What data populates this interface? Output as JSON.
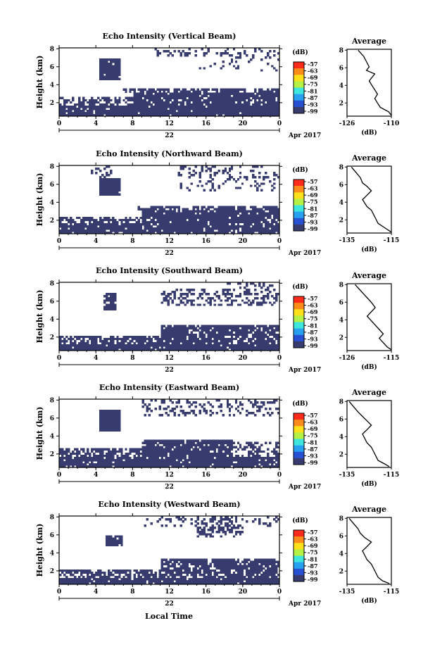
{
  "figure": {
    "xlabel": "Local Time",
    "date_label": "Apr 2017",
    "day_label": "22",
    "panel_ylabel": "Height (km)",
    "side_title": "Average",
    "side_xlabel": "(dB)",
    "cb_unit": "(dB)",
    "cb_ticks": [
      "-57",
      "-63",
      "-69",
      "-75",
      "-81",
      "-87",
      "-93",
      "-99"
    ],
    "x_ticks": [
      "0",
      "4",
      "8",
      "12",
      "16",
      "20",
      "0"
    ],
    "y_ticks": [
      "8",
      "6",
      "4",
      "2"
    ],
    "colors": {
      "echo": "#373b6e",
      "background": "#ffffff",
      "colorbar": [
        "#ff2a1a",
        "#ff8c1a",
        "#ffe01a",
        "#b4f046",
        "#3ce6dc",
        "#28a0f0",
        "#2850d2",
        "#373b6e"
      ]
    }
  },
  "chart_data": [
    {
      "type": "heatmap",
      "title": "Echo Intensity (Vertical Beam)",
      "xlabel": "Local Time",
      "ylabel": "Height (km)",
      "xlim": [
        0,
        24
      ],
      "ylim": [
        0.5,
        8.1
      ],
      "colorbar_range": [
        -99,
        -57
      ],
      "echo_regions": [
        {
          "t0": 0,
          "t1": 24,
          "h0": 0.5,
          "h1": 1.6,
          "density": 0.96
        },
        {
          "t0": 0,
          "t1": 8,
          "h0": 1.6,
          "h1": 2.6,
          "density": 0.55
        },
        {
          "t0": 8,
          "t1": 24,
          "h0": 1.6,
          "h1": 3.0,
          "density": 0.9
        },
        {
          "t0": 7,
          "t1": 24,
          "h0": 3.0,
          "h1": 3.5,
          "density": 0.75
        },
        {
          "t0": 4.3,
          "t1": 6.6,
          "h0": 4.6,
          "h1": 6.8,
          "density": 0.97
        },
        {
          "t0": 10.5,
          "t1": 24,
          "h0": 7.2,
          "h1": 8.1,
          "density": 0.28
        },
        {
          "t0": 15,
          "t1": 24,
          "h0": 5.5,
          "h1": 7.2,
          "density": 0.1
        }
      ]
    },
    {
      "type": "heatmap",
      "title": "Echo Intensity (Northward Beam)",
      "xlabel": "Local Time",
      "ylabel": "Height (km)",
      "xlim": [
        0,
        24
      ],
      "ylim": [
        0.5,
        8.1
      ],
      "colorbar_range": [
        -99,
        -57
      ],
      "echo_regions": [
        {
          "t0": 0,
          "t1": 24,
          "h0": 0.5,
          "h1": 1.6,
          "density": 0.92
        },
        {
          "t0": 0,
          "t1": 9,
          "h0": 1.6,
          "h1": 2.3,
          "density": 0.6
        },
        {
          "t0": 9,
          "t1": 24,
          "h0": 1.6,
          "h1": 3.1,
          "density": 0.88
        },
        {
          "t0": 8.5,
          "t1": 24,
          "h0": 3.1,
          "h1": 3.6,
          "density": 0.6
        },
        {
          "t0": 4.3,
          "t1": 6.6,
          "h0": 4.8,
          "h1": 6.6,
          "density": 0.95
        },
        {
          "t0": 3.5,
          "t1": 6,
          "h0": 6.6,
          "h1": 8.1,
          "density": 0.25
        },
        {
          "t0": 13,
          "t1": 24,
          "h0": 5.2,
          "h1": 8.1,
          "density": 0.22
        }
      ]
    },
    {
      "type": "heatmap",
      "title": "Echo Intensity (Southward Beam)",
      "xlabel": "Local Time",
      "ylabel": "Height (km)",
      "xlim": [
        0,
        24
      ],
      "ylim": [
        0.5,
        8.1
      ],
      "colorbar_range": [
        -99,
        -57
      ],
      "echo_regions": [
        {
          "t0": 0,
          "t1": 24,
          "h0": 0.5,
          "h1": 1.3,
          "density": 0.97
        },
        {
          "t0": 0,
          "t1": 11,
          "h0": 1.3,
          "h1": 2.2,
          "density": 0.75
        },
        {
          "t0": 11,
          "t1": 24,
          "h0": 1.3,
          "h1": 3.4,
          "density": 0.85
        },
        {
          "t0": 4.8,
          "t1": 6.2,
          "h0": 5.0,
          "h1": 6.8,
          "density": 0.9
        },
        {
          "t0": 11,
          "t1": 24,
          "h0": 5.4,
          "h1": 7.4,
          "density": 0.38
        },
        {
          "t0": 18,
          "t1": 24,
          "h0": 7.4,
          "h1": 8.1,
          "density": 0.2
        }
      ]
    },
    {
      "type": "heatmap",
      "title": "Echo Intensity (Eastward Beam)",
      "xlabel": "Local Time",
      "ylabel": "Height (km)",
      "xlim": [
        0,
        24
      ],
      "ylim": [
        0.5,
        8.1
      ],
      "colorbar_range": [
        -99,
        -57
      ],
      "echo_regions": [
        {
          "t0": 0,
          "t1": 24,
          "h0": 0.5,
          "h1": 1.6,
          "density": 0.9
        },
        {
          "t0": 0,
          "t1": 9,
          "h0": 1.6,
          "h1": 2.7,
          "density": 0.7
        },
        {
          "t0": 9,
          "t1": 19,
          "h0": 1.6,
          "h1": 3.5,
          "density": 0.9
        },
        {
          "t0": 19,
          "t1": 24,
          "h0": 1.6,
          "h1": 3.3,
          "density": 0.4
        },
        {
          "t0": 4.4,
          "t1": 6.8,
          "h0": 4.6,
          "h1": 6.9,
          "density": 0.96
        },
        {
          "t0": 9,
          "t1": 24,
          "h0": 6.2,
          "h1": 8.1,
          "density": 0.26
        }
      ]
    },
    {
      "type": "heatmap",
      "title": "Echo Intensity (Westward Beam)",
      "xlabel": "Local Time",
      "ylabel": "Height (km)",
      "xlim": [
        0,
        24
      ],
      "ylim": [
        0.5,
        8.1
      ],
      "colorbar_range": [
        -99,
        -57
      ],
      "echo_regions": [
        {
          "t0": 0,
          "t1": 24,
          "h0": 0.5,
          "h1": 1.3,
          "density": 0.94
        },
        {
          "t0": 0,
          "t1": 11,
          "h0": 1.3,
          "h1": 2.2,
          "density": 0.65
        },
        {
          "t0": 11,
          "t1": 24,
          "h0": 1.3,
          "h1": 3.4,
          "density": 0.8
        },
        {
          "t0": 5,
          "t1": 7,
          "h0": 4.8,
          "h1": 6.0,
          "density": 0.9
        },
        {
          "t0": 15,
          "t1": 20,
          "h0": 5.8,
          "h1": 8.1,
          "density": 0.45
        },
        {
          "t0": 9,
          "t1": 24,
          "h0": 6.8,
          "h1": 8.1,
          "density": 0.18
        }
      ]
    },
    {
      "type": "line",
      "title": "Average",
      "xlabel": "(dB)",
      "ylabel": "Height (km)",
      "xticks": [
        "-126",
        "-110"
      ],
      "xlim": [
        -126,
        -110
      ],
      "ylim": [
        0.5,
        8.1
      ],
      "x": [
        -122,
        -120,
        -119,
        -118,
        -119,
        -116,
        -117,
        -118,
        -117,
        -116,
        -115,
        -116,
        -115,
        -114,
        -111,
        -110
      ],
      "y": [
        8.0,
        7.3,
        6.7,
        6.1,
        5.7,
        5.3,
        4.9,
        4.5,
        4.0,
        3.5,
        3.0,
        2.5,
        2.0,
        1.5,
        1.0,
        0.6
      ]
    },
    {
      "type": "line",
      "title": "Average",
      "xlabel": "(dB)",
      "ylabel": "Height (km)",
      "xticks": [
        "-135",
        "-115"
      ],
      "xlim": [
        -135,
        -115
      ],
      "ylim": [
        0.5,
        8.1
      ],
      "x": [
        -133,
        -131,
        -129,
        -128,
        -126,
        -124,
        -126,
        -128,
        -127,
        -126,
        -124,
        -123,
        -122,
        -121,
        -118,
        -115
      ],
      "y": [
        8.0,
        7.4,
        6.8,
        6.2,
        5.8,
        5.3,
        4.8,
        4.3,
        3.9,
        3.5,
        3.1,
        2.6,
        2.1,
        1.6,
        1.1,
        0.6
      ]
    },
    {
      "type": "line",
      "title": "Average",
      "xlabel": "(dB)",
      "ylabel": "Height (km)",
      "xticks": [
        "-126",
        "-115"
      ],
      "xlim": [
        -126,
        -115
      ],
      "ylim": [
        0.5,
        8.1
      ],
      "x": [
        -124,
        -123,
        -122,
        -121,
        -120,
        -119,
        -120,
        -121,
        -120,
        -119,
        -118,
        -117,
        -118,
        -117,
        -116,
        -115
      ],
      "y": [
        8.0,
        7.5,
        7.0,
        6.5,
        6.0,
        5.4,
        4.9,
        4.4,
        3.9,
        3.4,
        2.9,
        2.4,
        1.9,
        1.4,
        0.9,
        0.6
      ]
    },
    {
      "type": "line",
      "title": "Average",
      "xlabel": "(dB)",
      "ylabel": "Height (km)",
      "xticks": [
        "-135",
        "-115"
      ],
      "xlim": [
        -135,
        -115
      ],
      "ylim": [
        0.5,
        8.1
      ],
      "x": [
        -134,
        -132,
        -130,
        -128,
        -126,
        -124,
        -126,
        -128,
        -127,
        -126,
        -124,
        -123,
        -122,
        -121,
        -118,
        -116
      ],
      "y": [
        8.0,
        7.4,
        6.8,
        6.3,
        5.8,
        5.3,
        4.8,
        4.3,
        3.8,
        3.3,
        2.8,
        2.3,
        1.8,
        1.3,
        0.9,
        0.6
      ]
    },
    {
      "type": "line",
      "title": "Average",
      "xlabel": "(dB)",
      "ylabel": "Height (km)",
      "xticks": [
        "-135",
        "-115"
      ],
      "xlim": [
        -135,
        -115
      ],
      "ylim": [
        0.5,
        8.1
      ],
      "x": [
        -134,
        -132,
        -130,
        -129,
        -127,
        -124,
        -126,
        -128,
        -127,
        -126,
        -124,
        -123,
        -122,
        -121,
        -119,
        -116
      ],
      "y": [
        8.0,
        7.4,
        6.8,
        6.3,
        5.8,
        5.3,
        4.8,
        4.3,
        3.8,
        3.3,
        2.8,
        2.3,
        1.8,
        1.3,
        0.9,
        0.6
      ]
    }
  ]
}
